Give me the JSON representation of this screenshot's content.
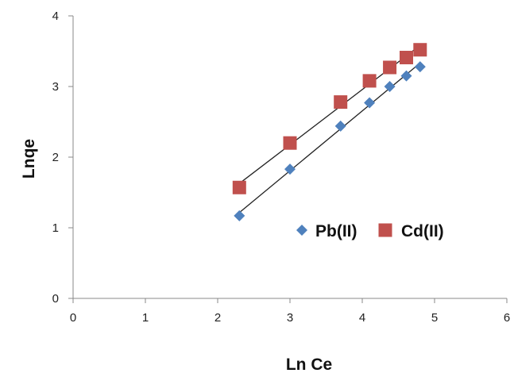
{
  "chart_data": {
    "type": "scatter",
    "title": "",
    "xlabel": "Ln Ce",
    "ylabel": "Lnqe",
    "xlim": [
      0,
      6
    ],
    "ylim": [
      0,
      4
    ],
    "x_ticks": [
      "0",
      "1",
      "2",
      "3",
      "4",
      "5",
      "6"
    ],
    "y_ticks": [
      "0",
      "1",
      "2",
      "3",
      "4"
    ],
    "grid": false,
    "legend_position": "inside-lower-right",
    "trendlines": true,
    "series": [
      {
        "name": "Pb(II)",
        "marker": "diamond",
        "color": "#4f81bd",
        "points": [
          {
            "x": 2.3,
            "y": 1.17
          },
          {
            "x": 3.0,
            "y": 1.83
          },
          {
            "x": 3.7,
            "y": 2.44
          },
          {
            "x": 4.1,
            "y": 2.77
          },
          {
            "x": 4.38,
            "y": 3.0
          },
          {
            "x": 4.61,
            "y": 3.15
          },
          {
            "x": 4.8,
            "y": 3.28
          }
        ]
      },
      {
        "name": "Cd(II)",
        "marker": "square",
        "color": "#c0504d",
        "points": [
          {
            "x": 2.3,
            "y": 1.57
          },
          {
            "x": 3.0,
            "y": 2.2
          },
          {
            "x": 3.7,
            "y": 2.78
          },
          {
            "x": 4.1,
            "y": 3.08
          },
          {
            "x": 4.38,
            "y": 3.27
          },
          {
            "x": 4.61,
            "y": 3.41
          },
          {
            "x": 4.8,
            "y": 3.52
          }
        ]
      }
    ]
  }
}
